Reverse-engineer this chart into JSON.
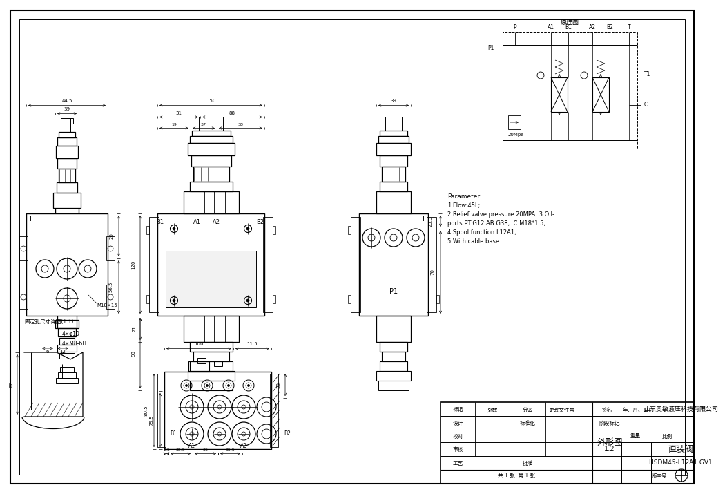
{
  "bg_color": "#ffffff",
  "params_text_lines": [
    "Parameter",
    "1.Flow:45L;",
    "2.Relief valve pressure:20MPA; 3.Oil-",
    "ports:PT:G12,AB:G38,  C:M18*1.5;",
    "4.Spool function:L12A1;",
    "5.With cable base"
  ],
  "title_text1": "外形图",
  "title_text2": "山东奥敏液压科技有限公司",
  "title_text3": "直装阀",
  "part_number": "HSDM45-L12A1 GV1",
  "schematic_title": "原理图",
  "scale_text": "1:2",
  "sheet_text": "共 1 张  第 1 张",
  "label_biaoji": "标记",
  "label_chushu": "处数",
  "label_fenqu": "分区",
  "label_gaiwen": "更改文件号",
  "label_qianming": "签名",
  "label_riyue": "年、月、日",
  "label_sheji": "设计",
  "label_biaozhunhua": "标准化",
  "label_jiaodui": "校对",
  "label_shenhe": "审核",
  "label_gongyis": "工艺",
  "label_pizhun": "批准",
  "label_jieduan": "阶段标记",
  "label_zhongliang": "重量",
  "label_bili": "比例",
  "label_detail": "固定孔尺寸详图(1:1)"
}
